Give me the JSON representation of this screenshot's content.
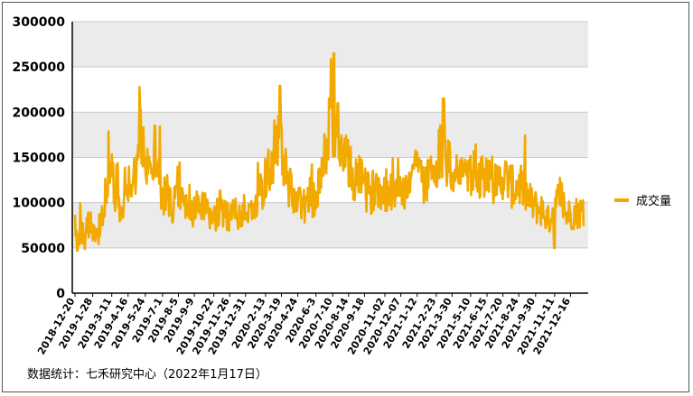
{
  "chart_data": {
    "type": "line",
    "title": "",
    "xlabel": "",
    "ylabel": "",
    "ylim": [
      0,
      300000
    ],
    "yticks": [
      "0",
      "50000",
      "100000",
      "150000",
      "200000",
      "250000",
      "300000"
    ],
    "xticks": [
      "2018-12-20",
      "2019-1-28",
      "2019-3-11",
      "2019-4-16",
      "2019-5-24",
      "2019-7-1",
      "2019-8-5",
      "2019-9-9",
      "2019-10-22",
      "2019-11-26",
      "2019-12-31",
      "2020-2-13",
      "2020-3-19",
      "2020-4-24",
      "2020-6-3",
      "2020-7-10",
      "2020-8-14",
      "2020-9-18",
      "2020-11-02",
      "2020-12-07",
      "2021-1-12",
      "2021-2-23",
      "2021-3-30",
      "2021-5-10",
      "2021-6-15",
      "2021-7-20",
      "2021-8-24",
      "2021-9-30",
      "2021-11-11",
      "2021-12-16"
    ],
    "grid": true,
    "grid_bands": true,
    "legend_position": "right",
    "series": [
      {
        "name": "成交量",
        "color": "#f2a900",
        "anchors": [
          [
            "2018-12-20",
            75000
          ],
          [
            "2018-12-27",
            55000
          ],
          [
            "2019-1-3",
            70000
          ],
          [
            "2019-1-10",
            58000
          ],
          [
            "2019-1-17",
            78000
          ],
          [
            "2019-1-28",
            65000
          ],
          [
            "2019-2-10",
            68000
          ],
          [
            "2019-2-20",
            95000
          ],
          [
            "2019-2-28",
            120000
          ],
          [
            "2019-3-11",
            128000
          ],
          [
            "2019-3-20",
            110000
          ],
          [
            "2019-3-28",
            95000
          ],
          [
            "2019-4-5",
            100000
          ],
          [
            "2019-4-16",
            115000
          ],
          [
            "2019-4-25",
            125000
          ],
          [
            "2019-5-5",
            140000
          ],
          [
            "2019-5-15",
            175000
          ],
          [
            "2019-5-24",
            135000
          ],
          [
            "2019-6-3",
            140000
          ],
          [
            "2019-6-12",
            150000
          ],
          [
            "2019-6-20",
            130000
          ],
          [
            "2019-7-1",
            110000
          ],
          [
            "2019-7-12",
            100000
          ],
          [
            "2019-7-22",
            95000
          ],
          [
            "2019-8-5",
            105000
          ],
          [
            "2019-8-20",
            95000
          ],
          [
            "2019-9-9",
            90000
          ],
          [
            "2019-9-25",
            100000
          ],
          [
            "2019-10-10",
            85000
          ],
          [
            "2019-10-22",
            82000
          ],
          [
            "2019-11-5",
            95000
          ],
          [
            "2019-11-15",
            90000
          ],
          [
            "2019-11-26",
            85000
          ],
          [
            "2019-12-10",
            90000
          ],
          [
            "2019-12-20",
            80000
          ],
          [
            "2019-12-31",
            90000
          ],
          [
            "2020-1-10",
            100000
          ],
          [
            "2020-1-20",
            90000
          ],
          [
            "2020-2-13",
            125000
          ],
          [
            "2020-2-28",
            150000
          ],
          [
            "2020-3-10",
            175000
          ],
          [
            "2020-3-19",
            160000
          ],
          [
            "2020-4-1",
            120000
          ],
          [
            "2020-4-12",
            110000
          ],
          [
            "2020-4-24",
            100000
          ],
          [
            "2020-5-10",
            95000
          ],
          [
            "2020-5-20",
            110000
          ],
          [
            "2020-6-3",
            100000
          ],
          [
            "2020-6-15",
            130000
          ],
          [
            "2020-6-28",
            165000
          ],
          [
            "2020-7-6",
            220000
          ],
          [
            "2020-7-10",
            190000
          ],
          [
            "2020-7-20",
            170000
          ],
          [
            "2020-8-1",
            150000
          ],
          [
            "2020-8-14",
            140000
          ],
          [
            "2020-8-25",
            125000
          ],
          [
            "2020-9-5",
            130000
          ],
          [
            "2020-9-18",
            115000
          ],
          [
            "2020-10-1",
            110000
          ],
          [
            "2020-10-20",
            120000
          ],
          [
            "2020-11-02",
            112000
          ],
          [
            "2020-11-15",
            115000
          ],
          [
            "2020-11-25",
            105000
          ],
          [
            "2020-12-07",
            110000
          ],
          [
            "2020-12-20",
            120000
          ],
          [
            "2020-12-30",
            130000
          ],
          [
            "2021-1-12",
            150000
          ],
          [
            "2021-1-25",
            120000
          ],
          [
            "2021-2-5",
            125000
          ],
          [
            "2021-2-23",
            145000
          ],
          [
            "2021-3-5",
            165000
          ],
          [
            "2021-3-15",
            145000
          ],
          [
            "2021-3-30",
            135000
          ],
          [
            "2021-4-15",
            130000
          ],
          [
            "2021-4-28",
            140000
          ],
          [
            "2021-5-10",
            125000
          ],
          [
            "2021-5-25",
            135000
          ],
          [
            "2021-6-5",
            130000
          ],
          [
            "2021-6-15",
            140000
          ],
          [
            "2021-6-28",
            125000
          ],
          [
            "2021-7-10",
            120000
          ],
          [
            "2021-7-20",
            130000
          ],
          [
            "2021-8-1",
            125000
          ],
          [
            "2021-8-12",
            115000
          ],
          [
            "2021-8-24",
            120000
          ],
          [
            "2021-9-8",
            110000
          ],
          [
            "2021-9-20",
            100000
          ],
          [
            "2021-9-30",
            95000
          ],
          [
            "2021-10-15",
            92000
          ],
          [
            "2021-10-28",
            80000
          ],
          [
            "2021-11-11",
            95000
          ],
          [
            "2021-11-25",
            110000
          ],
          [
            "2021-12-5",
            85000
          ],
          [
            "2021-12-16",
            88000
          ],
          [
            "2022-1-5",
            90000
          ],
          [
            "2022-1-14",
            85000
          ]
        ],
        "spikes": [
          [
            "2019-5-13",
            203000
          ],
          [
            "2019-6-14",
            185000
          ],
          [
            "2020-3-16",
            229000
          ],
          [
            "2020-7-2",
            215000
          ],
          [
            "2020-7-13",
            265000
          ],
          [
            "2020-7-21",
            210000
          ],
          [
            "2021-3-11",
            215000
          ],
          [
            "2021-11-11",
            50000
          ],
          [
            "2018-12-25",
            47000
          ]
        ]
      }
    ]
  },
  "legend": {
    "label": "成交量"
  },
  "source_note": "数据统计：七禾研究中心（2022年1月17日）"
}
